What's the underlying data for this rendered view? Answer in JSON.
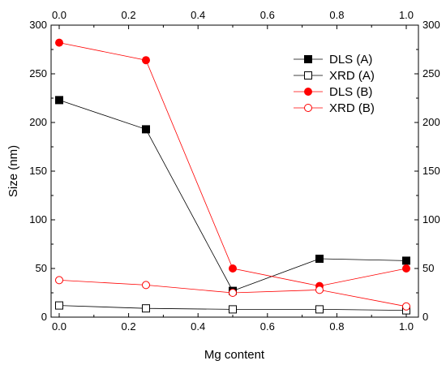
{
  "chart_data": {
    "type": "line",
    "xlabel": "Mg content",
    "ylabel": "Size (nm)",
    "xlim": [
      0,
      1
    ],
    "ylim": [
      0,
      300
    ],
    "x_ticks": [
      0.0,
      0.2,
      0.4,
      0.6,
      0.8,
      1.0
    ],
    "x_tick_labels": [
      "0.0",
      "0.2",
      "0.4",
      "0.6",
      "0.8",
      "1.0"
    ],
    "y_ticks": [
      0,
      50,
      100,
      150,
      200,
      250,
      300
    ],
    "y_tick_labels": [
      "0",
      "50",
      "100",
      "150",
      "200",
      "250",
      "300"
    ],
    "mirror_axes": "top-and-right",
    "grid": false,
    "legend_position": "top-right",
    "series": [
      {
        "name": "DLS (A)",
        "x": [
          0,
          0.25,
          0.5,
          0.75,
          1.0
        ],
        "y": [
          223,
          193,
          27,
          60,
          58
        ],
        "color": "#000000",
        "marker": "square-filled"
      },
      {
        "name": "XRD (A)",
        "x": [
          0,
          0.25,
          0.5,
          0.75,
          1.0
        ],
        "y": [
          12,
          9,
          8,
          8,
          7
        ],
        "color": "#000000",
        "marker": "square-open"
      },
      {
        "name": "DLS (B)",
        "x": [
          0,
          0.25,
          0.5,
          0.75,
          1.0
        ],
        "y": [
          282,
          264,
          50,
          32,
          50
        ],
        "color": "#ff0000",
        "marker": "circle-filled"
      },
      {
        "name": "XRD (B)",
        "x": [
          0,
          0.25,
          0.5,
          0.75,
          1.0
        ],
        "y": [
          38,
          33,
          25,
          28,
          11
        ],
        "color": "#ff0000",
        "marker": "circle-open"
      }
    ]
  }
}
